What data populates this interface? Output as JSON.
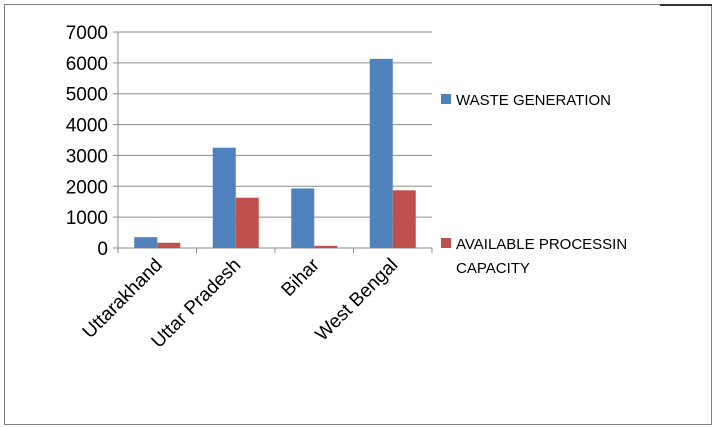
{
  "chart_data": {
    "type": "bar",
    "categories": [
      "Uttarakhand",
      "Uttar Pradesh",
      "Bihar",
      "West Bengal"
    ],
    "series": [
      {
        "name": "WASTE GENERATION",
        "values": [
          350,
          3250,
          1930,
          6130
        ],
        "color": "#4f81bd"
      },
      {
        "name": "AVAILABLE PROCESSIN CAPACITY",
        "values": [
          170,
          1630,
          70,
          1870
        ],
        "color": "#c0504d"
      }
    ],
    "yticks": [
      "0",
      "1000",
      "2000",
      "3000",
      "4000",
      "5000",
      "6000",
      "7000"
    ],
    "ylim": [
      0,
      7000
    ],
    "grid": true,
    "legend_position": "right",
    "legend_labels": [
      [
        "WASTE GENERATION"
      ],
      [
        "AVAILABLE PROCESSIN",
        "CAPACITY"
      ]
    ]
  }
}
